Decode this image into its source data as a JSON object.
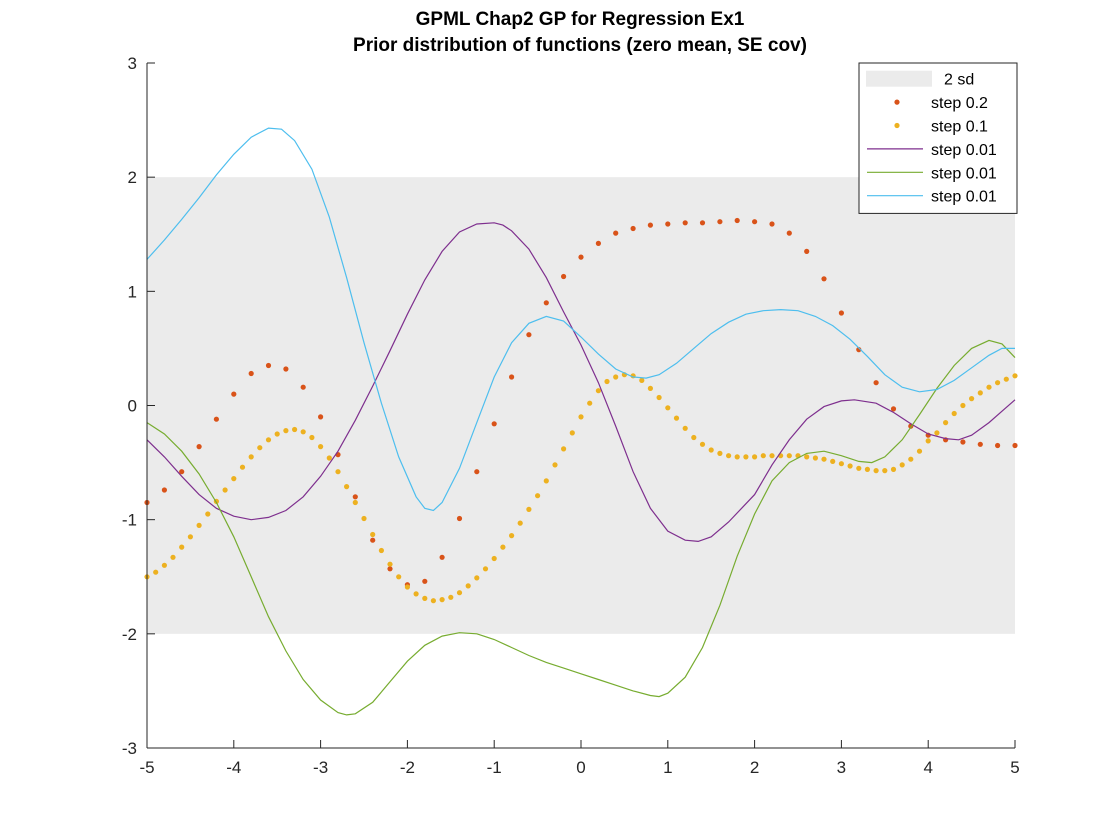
{
  "chart_data": {
    "type": "line",
    "title": "GPML Chap2 GP for Regression Ex1",
    "subtitle": "Prior distribution of functions (zero mean, SE cov)",
    "xlabel": "",
    "ylabel": "",
    "xlim": [
      -5,
      5
    ],
    "ylim": [
      -3,
      3
    ],
    "x_ticks": [
      -5,
      -4,
      -3,
      -2,
      -1,
      0,
      1,
      2,
      3,
      4,
      5
    ],
    "y_ticks": [
      -3,
      -2,
      -1,
      0,
      1,
      2,
      3
    ],
    "grid": false,
    "legend_location": "top-right",
    "band": {
      "name": "2 sd",
      "lower": -2,
      "upper": 2,
      "color": "#ebebeb"
    },
    "series": [
      {
        "name": "step 0.2",
        "style": "dots",
        "color": "#d95319",
        "points": [
          [
            -5,
            -0.85
          ],
          [
            -4.8,
            -0.74
          ],
          [
            -4.6,
            -0.58
          ],
          [
            -4.4,
            -0.36
          ],
          [
            -4.2,
            -0.12
          ],
          [
            -4,
            0.1
          ],
          [
            -3.8,
            0.28
          ],
          [
            -3.6,
            0.35
          ],
          [
            -3.4,
            0.32
          ],
          [
            -3.2,
            0.16
          ],
          [
            -3,
            -0.1
          ],
          [
            -2.8,
            -0.43
          ],
          [
            -2.6,
            -0.8
          ],
          [
            -2.4,
            -1.18
          ],
          [
            -2.2,
            -1.43
          ],
          [
            -2,
            -1.57
          ],
          [
            -1.8,
            -1.54
          ],
          [
            -1.6,
            -1.33
          ],
          [
            -1.4,
            -0.99
          ],
          [
            -1.2,
            -0.58
          ],
          [
            -1,
            -0.16
          ],
          [
            -0.8,
            0.25
          ],
          [
            -0.6,
            0.62
          ],
          [
            -0.4,
            0.9
          ],
          [
            -0.2,
            1.13
          ],
          [
            0,
            1.3
          ],
          [
            0.2,
            1.42
          ],
          [
            0.4,
            1.51
          ],
          [
            0.6,
            1.55
          ],
          [
            0.8,
            1.58
          ],
          [
            1,
            1.59
          ],
          [
            1.2,
            1.6
          ],
          [
            1.4,
            1.6
          ],
          [
            1.6,
            1.61
          ],
          [
            1.8,
            1.62
          ],
          [
            2,
            1.61
          ],
          [
            2.2,
            1.59
          ],
          [
            2.4,
            1.51
          ],
          [
            2.6,
            1.35
          ],
          [
            2.8,
            1.11
          ],
          [
            3,
            0.81
          ],
          [
            3.2,
            0.49
          ],
          [
            3.4,
            0.2
          ],
          [
            3.6,
            -0.03
          ],
          [
            3.8,
            -0.18
          ],
          [
            4,
            -0.26
          ],
          [
            4.2,
            -0.3
          ],
          [
            4.4,
            -0.32
          ],
          [
            4.6,
            -0.34
          ],
          [
            4.8,
            -0.35
          ],
          [
            5,
            -0.35
          ]
        ]
      },
      {
        "name": "step 0.1",
        "style": "dots",
        "color": "#edb120",
        "points": [
          [
            -5,
            -1.5
          ],
          [
            -4.9,
            -1.46
          ],
          [
            -4.8,
            -1.4
          ],
          [
            -4.7,
            -1.33
          ],
          [
            -4.6,
            -1.24
          ],
          [
            -4.5,
            -1.15
          ],
          [
            -4.4,
            -1.05
          ],
          [
            -4.3,
            -0.95
          ],
          [
            -4.2,
            -0.84
          ],
          [
            -4.1,
            -0.74
          ],
          [
            -4,
            -0.64
          ],
          [
            -3.9,
            -0.54
          ],
          [
            -3.8,
            -0.45
          ],
          [
            -3.7,
            -0.37
          ],
          [
            -3.6,
            -0.3
          ],
          [
            -3.5,
            -0.25
          ],
          [
            -3.4,
            -0.22
          ],
          [
            -3.3,
            -0.21
          ],
          [
            -3.2,
            -0.23
          ],
          [
            -3.1,
            -0.28
          ],
          [
            -3,
            -0.36
          ],
          [
            -2.9,
            -0.46
          ],
          [
            -2.8,
            -0.58
          ],
          [
            -2.7,
            -0.71
          ],
          [
            -2.6,
            -0.85
          ],
          [
            -2.5,
            -0.99
          ],
          [
            -2.4,
            -1.13
          ],
          [
            -2.3,
            -1.27
          ],
          [
            -2.2,
            -1.39
          ],
          [
            -2.1,
            -1.5
          ],
          [
            -2,
            -1.59
          ],
          [
            -1.9,
            -1.65
          ],
          [
            -1.8,
            -1.69
          ],
          [
            -1.7,
            -1.71
          ],
          [
            -1.6,
            -1.7
          ],
          [
            -1.5,
            -1.68
          ],
          [
            -1.4,
            -1.64
          ],
          [
            -1.3,
            -1.58
          ],
          [
            -1.2,
            -1.51
          ],
          [
            -1.1,
            -1.43
          ],
          [
            -1,
            -1.34
          ],
          [
            -0.9,
            -1.24
          ],
          [
            -0.8,
            -1.14
          ],
          [
            -0.7,
            -1.03
          ],
          [
            -0.6,
            -0.91
          ],
          [
            -0.5,
            -0.79
          ],
          [
            -0.4,
            -0.66
          ],
          [
            -0.3,
            -0.52
          ],
          [
            -0.2,
            -0.38
          ],
          [
            -0.1,
            -0.24
          ],
          [
            0,
            -0.1
          ],
          [
            0.1,
            0.02
          ],
          [
            0.2,
            0.13
          ],
          [
            0.3,
            0.21
          ],
          [
            0.4,
            0.25
          ],
          [
            0.5,
            0.27
          ],
          [
            0.6,
            0.26
          ],
          [
            0.7,
            0.22
          ],
          [
            0.8,
            0.15
          ],
          [
            0.9,
            0.07
          ],
          [
            1,
            -0.02
          ],
          [
            1.1,
            -0.11
          ],
          [
            1.2,
            -0.2
          ],
          [
            1.3,
            -0.28
          ],
          [
            1.4,
            -0.34
          ],
          [
            1.5,
            -0.39
          ],
          [
            1.6,
            -0.42
          ],
          [
            1.7,
            -0.44
          ],
          [
            1.8,
            -0.45
          ],
          [
            1.9,
            -0.45
          ],
          [
            2,
            -0.45
          ],
          [
            2.1,
            -0.44
          ],
          [
            2.2,
            -0.44
          ],
          [
            2.3,
            -0.44
          ],
          [
            2.4,
            -0.44
          ],
          [
            2.5,
            -0.44
          ],
          [
            2.6,
            -0.45
          ],
          [
            2.7,
            -0.46
          ],
          [
            2.8,
            -0.47
          ],
          [
            2.9,
            -0.49
          ],
          [
            3,
            -0.51
          ],
          [
            3.1,
            -0.53
          ],
          [
            3.2,
            -0.55
          ],
          [
            3.3,
            -0.56
          ],
          [
            3.4,
            -0.57
          ],
          [
            3.5,
            -0.57
          ],
          [
            3.6,
            -0.56
          ],
          [
            3.7,
            -0.52
          ],
          [
            3.8,
            -0.47
          ],
          [
            3.9,
            -0.4
          ],
          [
            4,
            -0.31
          ],
          [
            4.1,
            -0.24
          ],
          [
            4.2,
            -0.15
          ],
          [
            4.3,
            -0.07
          ],
          [
            4.4,
            0
          ],
          [
            4.5,
            0.06
          ],
          [
            4.6,
            0.11
          ],
          [
            4.7,
            0.16
          ],
          [
            4.8,
            0.2
          ],
          [
            4.9,
            0.23
          ],
          [
            5,
            0.26
          ]
        ]
      },
      {
        "name": "step 0.01",
        "style": "line",
        "color": "#7e2f8e",
        "points": [
          [
            -5,
            -0.3
          ],
          [
            -4.8,
            -0.45
          ],
          [
            -4.6,
            -0.62
          ],
          [
            -4.4,
            -0.78
          ],
          [
            -4.2,
            -0.9
          ],
          [
            -4,
            -0.97
          ],
          [
            -3.8,
            -1
          ],
          [
            -3.6,
            -0.98
          ],
          [
            -3.4,
            -0.92
          ],
          [
            -3.2,
            -0.8
          ],
          [
            -3,
            -0.62
          ],
          [
            -2.8,
            -0.4
          ],
          [
            -2.6,
            -0.13
          ],
          [
            -2.4,
            0.17
          ],
          [
            -2.2,
            0.48
          ],
          [
            -2,
            0.8
          ],
          [
            -1.8,
            1.1
          ],
          [
            -1.6,
            1.35
          ],
          [
            -1.4,
            1.52
          ],
          [
            -1.2,
            1.59
          ],
          [
            -1,
            1.6
          ],
          [
            -0.9,
            1.58
          ],
          [
            -0.8,
            1.53
          ],
          [
            -0.6,
            1.37
          ],
          [
            -0.4,
            1.12
          ],
          [
            -0.2,
            0.82
          ],
          [
            0,
            0.53
          ],
          [
            0.2,
            0.2
          ],
          [
            0.4,
            -0.18
          ],
          [
            0.6,
            -0.58
          ],
          [
            0.8,
            -0.9
          ],
          [
            1,
            -1.1
          ],
          [
            1.2,
            -1.18
          ],
          [
            1.35,
            -1.19
          ],
          [
            1.5,
            -1.15
          ],
          [
            1.7,
            -1.02
          ],
          [
            2,
            -0.78
          ],
          [
            2.2,
            -0.52
          ],
          [
            2.4,
            -0.3
          ],
          [
            2.6,
            -0.12
          ],
          [
            2.8,
            -0.01
          ],
          [
            3,
            0.04
          ],
          [
            3.15,
            0.05
          ],
          [
            3.4,
            0.02
          ],
          [
            3.6,
            -0.06
          ],
          [
            3.8,
            -0.16
          ],
          [
            4,
            -0.25
          ],
          [
            4.2,
            -0.29
          ],
          [
            4.35,
            -0.3
          ],
          [
            4.5,
            -0.26
          ],
          [
            4.7,
            -0.15
          ],
          [
            4.85,
            -0.05
          ],
          [
            5,
            0.05
          ]
        ]
      },
      {
        "name": "step 0.01",
        "style": "line",
        "color": "#77ac30",
        "points": [
          [
            -5,
            -0.15
          ],
          [
            -4.8,
            -0.25
          ],
          [
            -4.6,
            -0.4
          ],
          [
            -4.4,
            -0.6
          ],
          [
            -4.2,
            -0.85
          ],
          [
            -4,
            -1.15
          ],
          [
            -3.8,
            -1.5
          ],
          [
            -3.6,
            -1.85
          ],
          [
            -3.4,
            -2.15
          ],
          [
            -3.2,
            -2.4
          ],
          [
            -3,
            -2.58
          ],
          [
            -2.8,
            -2.69
          ],
          [
            -2.7,
            -2.71
          ],
          [
            -2.6,
            -2.7
          ],
          [
            -2.4,
            -2.6
          ],
          [
            -2.2,
            -2.42
          ],
          [
            -2,
            -2.24
          ],
          [
            -1.8,
            -2.1
          ],
          [
            -1.6,
            -2.02
          ],
          [
            -1.4,
            -1.99
          ],
          [
            -1.2,
            -2
          ],
          [
            -1,
            -2.05
          ],
          [
            -0.8,
            -2.12
          ],
          [
            -0.6,
            -2.19
          ],
          [
            -0.4,
            -2.25
          ],
          [
            -0.2,
            -2.3
          ],
          [
            0,
            -2.35
          ],
          [
            0.2,
            -2.4
          ],
          [
            0.4,
            -2.45
          ],
          [
            0.6,
            -2.5
          ],
          [
            0.8,
            -2.54
          ],
          [
            0.9,
            -2.55
          ],
          [
            1,
            -2.52
          ],
          [
            1.2,
            -2.38
          ],
          [
            1.4,
            -2.12
          ],
          [
            1.6,
            -1.75
          ],
          [
            1.8,
            -1.32
          ],
          [
            2,
            -0.95
          ],
          [
            2.2,
            -0.66
          ],
          [
            2.4,
            -0.5
          ],
          [
            2.6,
            -0.42
          ],
          [
            2.8,
            -0.4
          ],
          [
            3,
            -0.44
          ],
          [
            3.2,
            -0.49
          ],
          [
            3.35,
            -0.5
          ],
          [
            3.5,
            -0.45
          ],
          [
            3.7,
            -0.3
          ],
          [
            3.9,
            -0.08
          ],
          [
            4.1,
            0.15
          ],
          [
            4.3,
            0.35
          ],
          [
            4.5,
            0.5
          ],
          [
            4.7,
            0.57
          ],
          [
            4.85,
            0.54
          ],
          [
            5,
            0.42
          ]
        ]
      },
      {
        "name": "step 0.01",
        "style": "line",
        "color": "#4dbeee",
        "points": [
          [
            -5,
            1.28
          ],
          [
            -4.8,
            1.45
          ],
          [
            -4.6,
            1.63
          ],
          [
            -4.4,
            1.82
          ],
          [
            -4.2,
            2.02
          ],
          [
            -4,
            2.2
          ],
          [
            -3.8,
            2.35
          ],
          [
            -3.6,
            2.43
          ],
          [
            -3.45,
            2.42
          ],
          [
            -3.3,
            2.32
          ],
          [
            -3.1,
            2.07
          ],
          [
            -2.9,
            1.65
          ],
          [
            -2.7,
            1.12
          ],
          [
            -2.5,
            0.55
          ],
          [
            -2.3,
            0.02
          ],
          [
            -2.1,
            -0.45
          ],
          [
            -1.9,
            -0.8
          ],
          [
            -1.8,
            -0.9
          ],
          [
            -1.7,
            -0.92
          ],
          [
            -1.6,
            -0.85
          ],
          [
            -1.4,
            -0.55
          ],
          [
            -1.2,
            -0.15
          ],
          [
            -1,
            0.25
          ],
          [
            -0.8,
            0.55
          ],
          [
            -0.6,
            0.72
          ],
          [
            -0.4,
            0.78
          ],
          [
            -0.2,
            0.74
          ],
          [
            0,
            0.6
          ],
          [
            0.2,
            0.45
          ],
          [
            0.4,
            0.32
          ],
          [
            0.6,
            0.25
          ],
          [
            0.75,
            0.24
          ],
          [
            0.9,
            0.27
          ],
          [
            1.1,
            0.37
          ],
          [
            1.3,
            0.5
          ],
          [
            1.5,
            0.63
          ],
          [
            1.7,
            0.73
          ],
          [
            1.9,
            0.8
          ],
          [
            2.1,
            0.83
          ],
          [
            2.3,
            0.84
          ],
          [
            2.5,
            0.83
          ],
          [
            2.7,
            0.78
          ],
          [
            2.9,
            0.7
          ],
          [
            3.1,
            0.58
          ],
          [
            3.3,
            0.43
          ],
          [
            3.5,
            0.27
          ],
          [
            3.7,
            0.16
          ],
          [
            3.9,
            0.12
          ],
          [
            4.1,
            0.14
          ],
          [
            4.3,
            0.22
          ],
          [
            4.5,
            0.33
          ],
          [
            4.7,
            0.44
          ],
          [
            4.85,
            0.5
          ],
          [
            5,
            0.5
          ]
        ]
      }
    ]
  }
}
